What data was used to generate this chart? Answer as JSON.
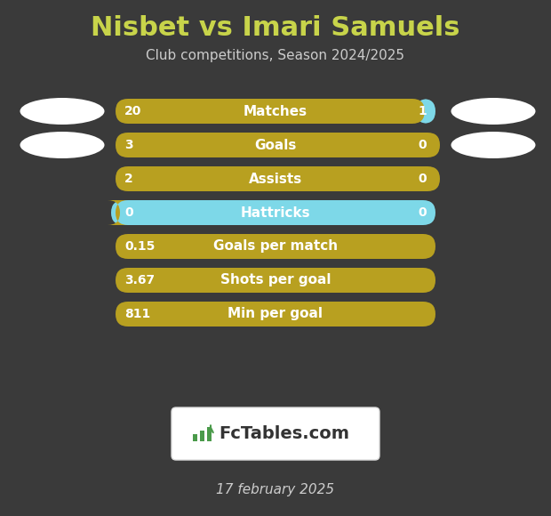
{
  "title": "Nisbet vs Imari Samuels",
  "subtitle": "Club competitions, Season 2024/2025",
  "date": "17 february 2025",
  "background_color": "#3a3a3a",
  "title_color": "#c8d44a",
  "subtitle_color": "#cccccc",
  "date_color": "#cccccc",
  "bar_gold_color": "#b8a020",
  "bar_cyan_color": "#7dd8e8",
  "bar_label_color": "#ffffff",
  "oval_color": "#cccccc",
  "rows": [
    {
      "label": "Matches",
      "left_val": "20",
      "right_val": "1",
      "has_cyan": true
    },
    {
      "label": "Goals",
      "left_val": "3",
      "right_val": "0",
      "has_cyan": true
    },
    {
      "label": "Assists",
      "left_val": "2",
      "right_val": "0",
      "has_cyan": true
    },
    {
      "label": "Hattricks",
      "left_val": "0",
      "right_val": "0",
      "has_cyan": true
    },
    {
      "label": "Goals per match",
      "left_val": "0.15",
      "right_val": null,
      "has_cyan": false
    },
    {
      "label": "Shots per goal",
      "left_val": "3.67",
      "right_val": null,
      "has_cyan": false
    },
    {
      "label": "Min per goal",
      "left_val": "811",
      "right_val": null,
      "has_cyan": false
    }
  ]
}
